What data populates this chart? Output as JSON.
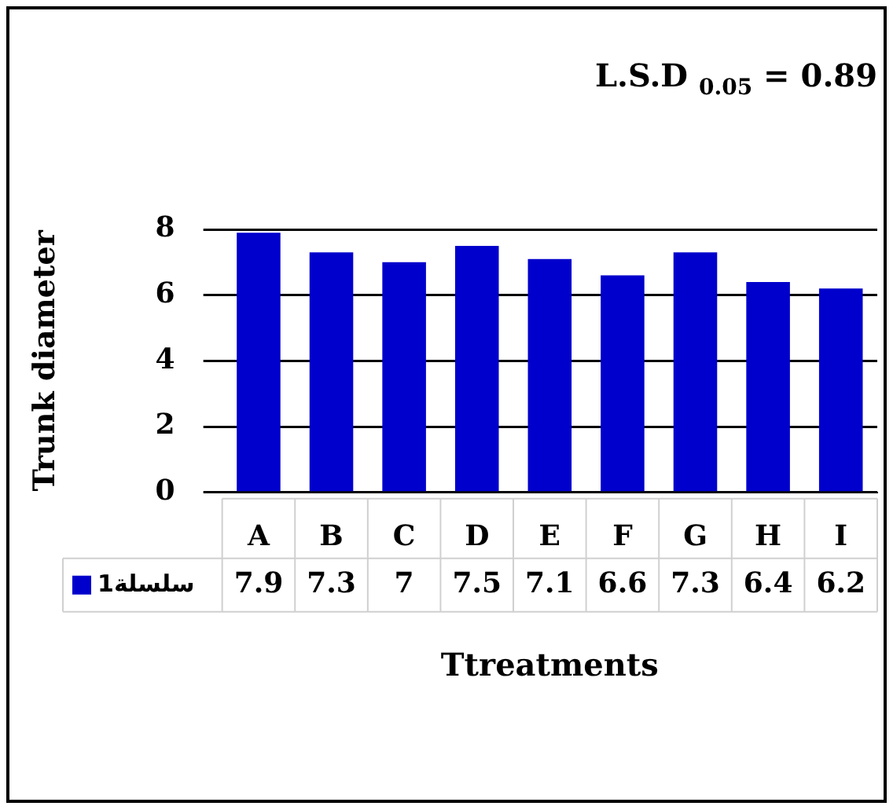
{
  "chart_data": {
    "type": "bar",
    "xlabel": "Ttreatments",
    "ylabel": "Trunk diameter",
    "annotations": [
      "L.S.D $_{0.05}$ = 0.89"
    ],
    "categories": [
      "A",
      "B",
      "C",
      "D",
      "E",
      "F",
      "G",
      "H",
      "I"
    ],
    "series": [
      {
        "name": "سلسلة1",
        "color": "#0000cc",
        "values": [
          7.9,
          7.3,
          7,
          7.5,
          7.1,
          6.6,
          7.3,
          6.4,
          6.2
        ]
      }
    ],
    "ylim": [
      0,
      8
    ],
    "yticks": [
      0,
      2,
      4,
      6,
      8
    ],
    "grid": "y",
    "legend": "bottom left",
    "data_labels": true
  }
}
